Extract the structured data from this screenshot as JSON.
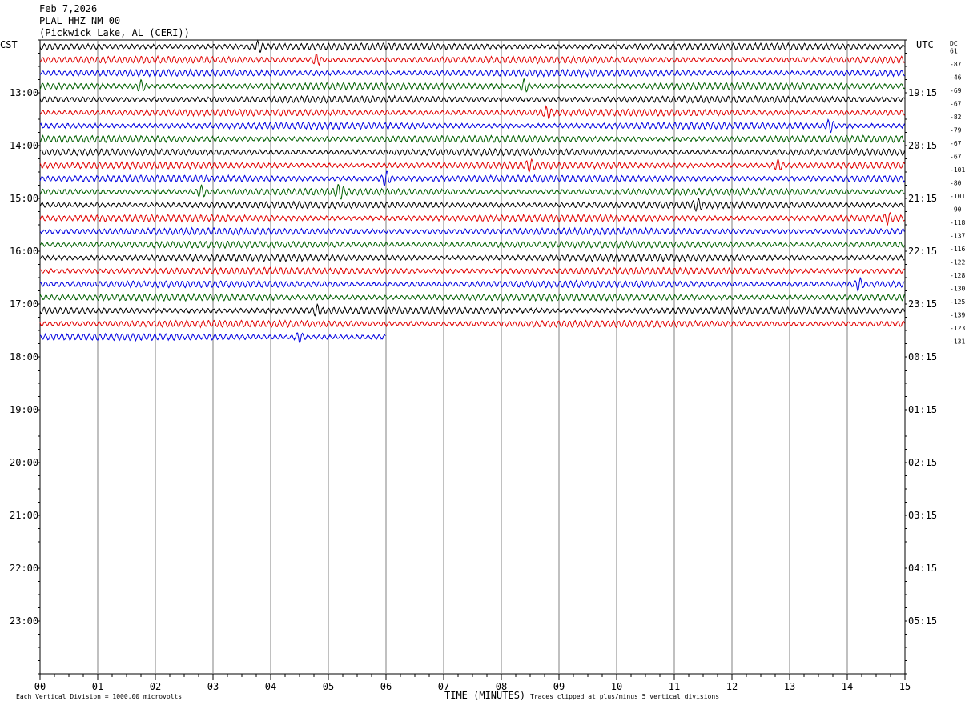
{
  "header": {
    "date": "Feb 7,2026",
    "station": "PLAL HHZ NM 00",
    "location": "(Pickwick Lake, AL (CERI))"
  },
  "left_axis_label": "CST",
  "right_axis_label": "UTC",
  "dc_label": "DC",
  "footer": {
    "left_note": "Each Vertical Division = 1000.00 microvolts",
    "x_axis_label": "TIME (MINUTES)",
    "right_note": "Traces clipped at plus/minus 5 vertical divisions"
  },
  "colors": {
    "black": "#000000",
    "red": "#e00000",
    "blue": "#0000e0",
    "green": "#006000",
    "grid": "#808080"
  },
  "chart_data": {
    "type": "line",
    "title": "",
    "xlabel": "TIME (MINUTES)",
    "x_ticks": [
      "00",
      "01",
      "02",
      "03",
      "04",
      "05",
      "06",
      "07",
      "08",
      "09",
      "10",
      "11",
      "12",
      "13",
      "14",
      "15"
    ],
    "xlim": [
      0,
      15
    ],
    "rows_per_hour": 4,
    "minutes_per_row": 15,
    "cst_hours": [
      "13:00",
      "14:00",
      "15:00",
      "16:00",
      "17:00",
      "18:00",
      "19:00",
      "20:00",
      "21:00",
      "22:00",
      "23:00"
    ],
    "utc_hours": [
      "19:15",
      "20:15",
      "21:15",
      "22:15",
      "23:15",
      "00:15",
      "01:15",
      "02:15",
      "03:15",
      "04:15",
      "05:15"
    ],
    "row_colors": [
      "black",
      "red",
      "blue",
      "green"
    ],
    "total_rows": 48,
    "traces": [
      {
        "row": 0,
        "dc": "61"
      },
      {
        "row": 1,
        "dc": "-87"
      },
      {
        "row": 2,
        "dc": "-46"
      },
      {
        "row": 3,
        "dc": "-69"
      },
      {
        "row": 4,
        "dc": "-67"
      },
      {
        "row": 5,
        "dc": "-82"
      },
      {
        "row": 6,
        "dc": "-79"
      },
      {
        "row": 7,
        "dc": "-67"
      },
      {
        "row": 8,
        "dc": "-67"
      },
      {
        "row": 9,
        "dc": "-101"
      },
      {
        "row": 10,
        "dc": "-80"
      },
      {
        "row": 11,
        "dc": "-101"
      },
      {
        "row": 12,
        "dc": "-90"
      },
      {
        "row": 13,
        "dc": "-118"
      },
      {
        "row": 14,
        "dc": "-137"
      },
      {
        "row": 15,
        "dc": "-116"
      },
      {
        "row": 16,
        "dc": "-122"
      },
      {
        "row": 17,
        "dc": "-128"
      },
      {
        "row": 18,
        "dc": "-130"
      },
      {
        "row": 19,
        "dc": "-125"
      },
      {
        "row": 20,
        "dc": "-139"
      },
      {
        "row": 21,
        "dc": "-123"
      },
      {
        "row": 22,
        "dc": "-131",
        "end_minute": 6.0
      }
    ],
    "events": [
      {
        "row": 0,
        "minute": 3.8,
        "amp": 1.6
      },
      {
        "row": 1,
        "minute": 4.8,
        "amp": 1.8
      },
      {
        "row": 3,
        "minute": 1.75,
        "amp": 1.8
      },
      {
        "row": 3,
        "minute": 8.4,
        "amp": 2.2
      },
      {
        "row": 5,
        "minute": 8.8,
        "amp": 1.5
      },
      {
        "row": 6,
        "minute": 13.7,
        "amp": 2.0
      },
      {
        "row": 9,
        "minute": 8.5,
        "amp": 1.5
      },
      {
        "row": 9,
        "minute": 12.8,
        "amp": 1.6
      },
      {
        "row": 10,
        "minute": 6.0,
        "amp": 2.6
      },
      {
        "row": 11,
        "minute": 2.8,
        "amp": 1.8
      },
      {
        "row": 11,
        "minute": 5.2,
        "amp": 2.2
      },
      {
        "row": 12,
        "minute": 11.4,
        "amp": 1.4
      },
      {
        "row": 13,
        "minute": 14.7,
        "amp": 1.4
      },
      {
        "row": 18,
        "minute": 14.2,
        "amp": 1.8
      },
      {
        "row": 20,
        "minute": 4.8,
        "amp": 1.5
      },
      {
        "row": 22,
        "minute": 4.5,
        "amp": 1.5
      }
    ]
  }
}
